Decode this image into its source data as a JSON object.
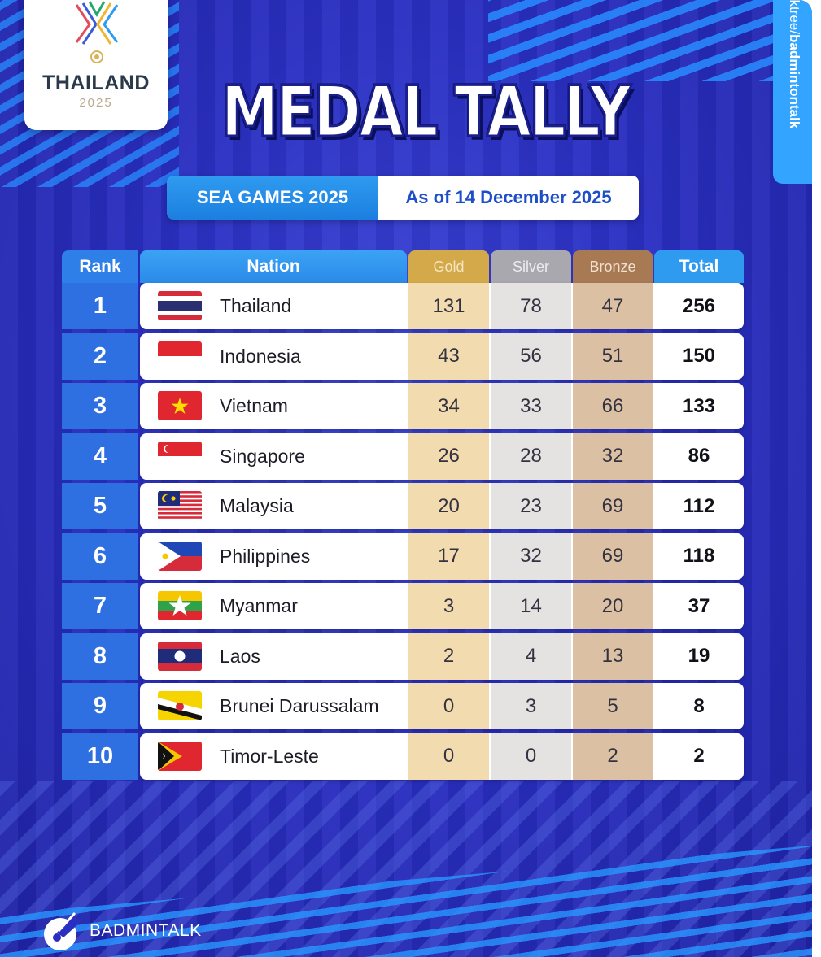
{
  "logo": {
    "country": "THAILAND",
    "year": "2025"
  },
  "title": "MEDAL TALLY",
  "subtitle": {
    "event": "SEA GAMES 2025",
    "date": "As of 14 December 2025"
  },
  "side_tab": {
    "prefix": "nktree/",
    "handle": "badmintontalk"
  },
  "table": {
    "headers": {
      "rank": "Rank",
      "nation": "Nation",
      "gold": "Gold",
      "silver": "Silver",
      "bronze": "Bronze",
      "total": "Total"
    },
    "rows": [
      {
        "rank": "1",
        "flag": "thailand",
        "nation": "Thailand",
        "gold": "131",
        "silver": "78",
        "bronze": "47",
        "total": "256"
      },
      {
        "rank": "2",
        "flag": "indonesia",
        "nation": "Indonesia",
        "gold": "43",
        "silver": "56",
        "bronze": "51",
        "total": "150"
      },
      {
        "rank": "3",
        "flag": "vietnam",
        "nation": "Vietnam",
        "gold": "34",
        "silver": "33",
        "bronze": "66",
        "total": "133"
      },
      {
        "rank": "4",
        "flag": "singapore",
        "nation": "Singapore",
        "gold": "26",
        "silver": "28",
        "bronze": "32",
        "total": "86"
      },
      {
        "rank": "5",
        "flag": "malaysia",
        "nation": "Malaysia",
        "gold": "20",
        "silver": "23",
        "bronze": "69",
        "total": "112"
      },
      {
        "rank": "6",
        "flag": "philippines",
        "nation": "Philippines",
        "gold": "17",
        "silver": "32",
        "bronze": "69",
        "total": "118"
      },
      {
        "rank": "7",
        "flag": "myanmar",
        "nation": "Myanmar",
        "gold": "3",
        "silver": "14",
        "bronze": "20",
        "total": "37"
      },
      {
        "rank": "8",
        "flag": "laos",
        "nation": "Laos",
        "gold": "2",
        "silver": "4",
        "bronze": "13",
        "total": "19"
      },
      {
        "rank": "9",
        "flag": "brunei",
        "nation": "Brunei Darussalam",
        "gold": "0",
        "silver": "3",
        "bronze": "5",
        "total": "8"
      },
      {
        "rank": "10",
        "flag": "timor-leste",
        "nation": "Timor-Leste",
        "gold": "0",
        "silver": "0",
        "bronze": "2",
        "total": "2"
      }
    ]
  },
  "brand": {
    "name": "BADMINTALK"
  },
  "colors": {
    "background": "#2a2fc2",
    "accent": "#2f9bf0",
    "gold": "#d4a94a",
    "silver": "#a8a8ae",
    "bronze": "#a87a54"
  }
}
